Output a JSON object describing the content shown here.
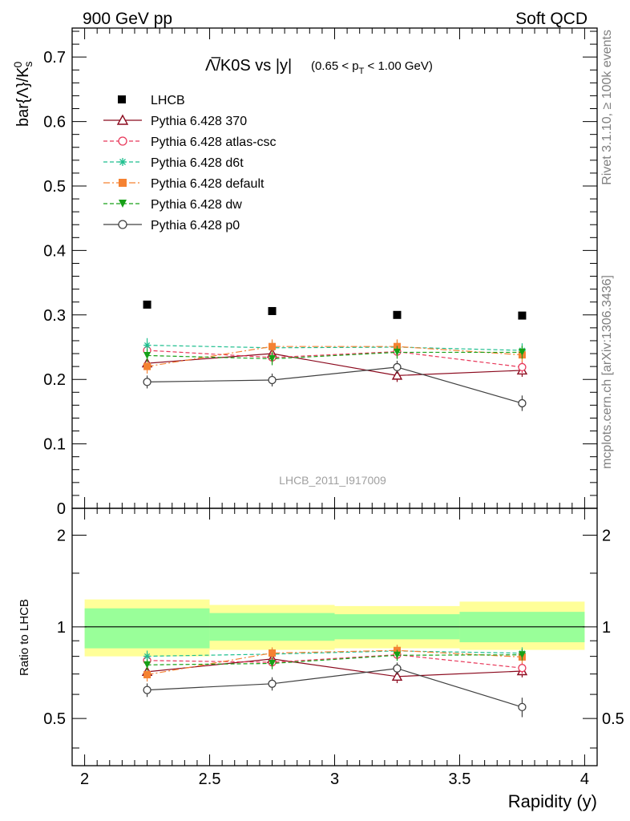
{
  "header": {
    "left": "900 GeV pp",
    "right": "Soft QCD"
  },
  "side_texts": {
    "rivet": "Rivet 3.1.10, ≥ 100k events",
    "mcplots": "mcplots.cern.ch [arXiv:1306.3436]"
  },
  "main_plot": {
    "title_main": "Λ̅/K0S vs |y|",
    "title_cut": "(0.65 < p",
    "title_cut_sub": "T",
    "title_cut_end": " < 1.00 GeV)",
    "ylabel": "bar{Λ}/K",
    "ylabel_sub": "s",
    "ylabel_sup": "0",
    "watermark": "LHCB_2011_I917009"
  },
  "ratio_plot": {
    "ylabel": "Ratio to LHCB"
  },
  "xlabel": "Rapidity (y)",
  "legend": [
    {
      "name": "LHCB",
      "color": "#000000"
    },
    {
      "name": "Pythia 6.428 370",
      "color": "#8b0a1e"
    },
    {
      "name": "Pythia 6.428 atlas-csc",
      "color": "#e8385a"
    },
    {
      "name": "Pythia 6.428 d6t",
      "color": "#1fbf8f"
    },
    {
      "name": "Pythia 6.428 default",
      "color": "#f58232"
    },
    {
      "name": "Pythia 6.428 dw",
      "color": "#17a017"
    },
    {
      "name": "Pythia 6.428 p0",
      "color": "#404040"
    }
  ],
  "chart_data": {
    "type": "scatter",
    "x": [
      2.25,
      2.75,
      3.25,
      3.75
    ],
    "x_bins": [
      [
        2.0,
        2.5
      ],
      [
        2.5,
        3.0
      ],
      [
        3.0,
        3.5
      ],
      [
        3.5,
        4.0
      ]
    ],
    "xlim": [
      1.95,
      4.05
    ],
    "xticks": [
      "2",
      "2.5",
      "3",
      "3.5",
      "4"
    ],
    "ylim": [
      0,
      0.745
    ],
    "yticks": [
      "0",
      "0.1",
      "0.2",
      "0.3",
      "0.4",
      "0.5",
      "0.6",
      "0.7"
    ],
    "ratio_ylim": [
      0.35,
      2.45
    ],
    "ratio_yticks": [
      "0.5",
      "1",
      "2"
    ],
    "data": {
      "name": "LHCB",
      "values": [
        0.316,
        0.306,
        0.3,
        0.299
      ]
    },
    "data_band_stat": [
      [
        0.85,
        1.15
      ],
      [
        0.9,
        1.11
      ],
      [
        0.91,
        1.1
      ],
      [
        0.89,
        1.12
      ]
    ],
    "data_band_total": [
      [
        0.8,
        1.23
      ],
      [
        0.84,
        1.18
      ],
      [
        0.85,
        1.17
      ],
      [
        0.84,
        1.21
      ]
    ],
    "series": [
      {
        "name": "Pythia 6.428 370",
        "values": [
          0.225,
          0.24,
          0.206,
          0.214
        ],
        "errors": [
          0.01,
          0.01,
          0.01,
          0.01
        ],
        "style": "solid",
        "marker": "triangle-open",
        "color": "#8b0a1e"
      },
      {
        "name": "Pythia 6.428 atlas-csc",
        "values": [
          0.245,
          0.234,
          0.243,
          0.219
        ],
        "errors": [
          0.009,
          0.009,
          0.009,
          0.009
        ],
        "style": "dashed",
        "marker": "circle-open",
        "color": "#e8385a"
      },
      {
        "name": "Pythia 6.428 d6t",
        "values": [
          0.253,
          0.249,
          0.25,
          0.245
        ],
        "errors": [
          0.011,
          0.011,
          0.011,
          0.011
        ],
        "style": "dashed",
        "marker": "star",
        "color": "#1fbf8f"
      },
      {
        "name": "Pythia 6.428 default",
        "values": [
          0.22,
          0.251,
          0.251,
          0.238
        ],
        "errors": [
          0.011,
          0.011,
          0.011,
          0.011
        ],
        "style": "dashdot",
        "marker": "square",
        "color": "#f58232"
      },
      {
        "name": "Pythia 6.428 dw",
        "values": [
          0.237,
          0.232,
          0.242,
          0.242
        ],
        "errors": [
          0.01,
          0.01,
          0.01,
          0.01
        ],
        "style": "dashed",
        "marker": "triangle-down",
        "color": "#17a017"
      },
      {
        "name": "Pythia 6.428 p0",
        "values": [
          0.196,
          0.199,
          0.219,
          0.163
        ],
        "errors": [
          0.01,
          0.01,
          0.01,
          0.012
        ],
        "style": "solid",
        "marker": "circle-open",
        "color": "#404040"
      }
    ]
  }
}
